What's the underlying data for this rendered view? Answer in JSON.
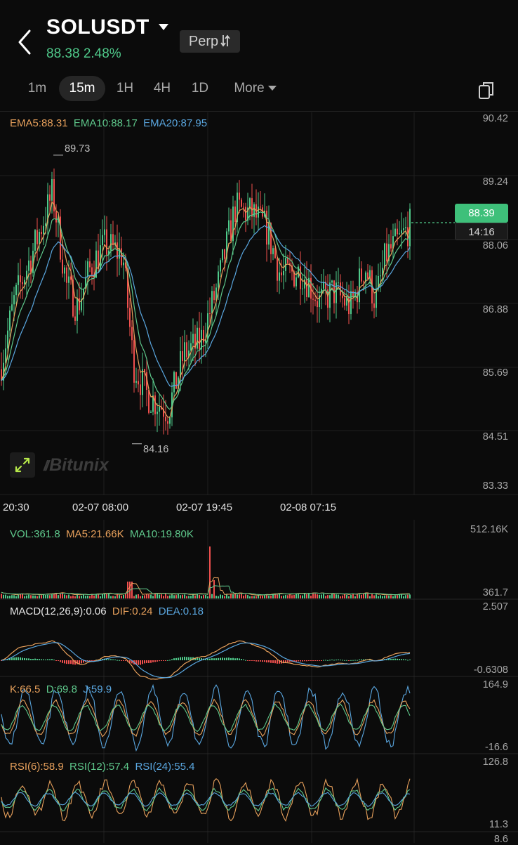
{
  "header": {
    "symbol": "SOLUSDT",
    "price": "88.38",
    "change": "2.48%",
    "perp_label": "Perp",
    "perp_icon": "swap-arrows-icon"
  },
  "tabs": [
    "1m",
    "15m",
    "1H",
    "4H",
    "1D",
    "More"
  ],
  "active_tab": "15m",
  "main_chart": {
    "ema5": "EMA5:88.31",
    "ema10": "EMA10:88.17",
    "ema20": "EMA20:87.95",
    "y_labels": [
      "90.42",
      "89.24",
      "88.06",
      "86.88",
      "85.69",
      "84.51",
      "83.33"
    ],
    "x_labels": [
      "20:30",
      "02-07 08:00",
      "02-07 19:45",
      "02-08 07:15"
    ],
    "high_label": "89.73",
    "low_label": "84.16",
    "last_price": "88.39",
    "countdown": "14:16",
    "watermark": "Bitunix"
  },
  "vol_panel": {
    "vol": "VOL:361.8",
    "ma5": "MA5:21.66K",
    "ma10": "MA10:19.80K",
    "y_top": "512.16K",
    "y_bottom": "361.7"
  },
  "macd_panel": {
    "macd": "MACD(12,26,9):0.06",
    "dif": "DIF:0.24",
    "dea": "DEA:0.18",
    "y_top": "2.507",
    "y_bottom": "-0.6308"
  },
  "kdj_panel": {
    "k": "K:66.5",
    "d": "D:69.8",
    "j": "J:59.9",
    "y_top": "164.9",
    "y_bottom": "-16.6"
  },
  "rsi_panel": {
    "rsi6": "RSI(6):58.9",
    "rsi12": "RSI(12):57.4",
    "rsi24": "RSI(24):55.4",
    "y_top": "126.8",
    "y_bottom": "11.3"
  },
  "roc_panel": {
    "y_top": "8.6"
  },
  "colors": {
    "up": "#4fc98a",
    "down": "#f0504e",
    "ema5": "#e8a15c",
    "ema10": "#5fc98c",
    "ema20": "#5aa7e0",
    "background": "#0b0b0b"
  }
}
